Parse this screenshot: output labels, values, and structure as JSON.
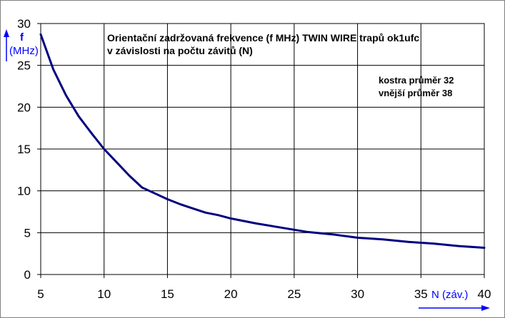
{
  "chart_data": {
    "type": "line",
    "title_lines": [
      "Orientační zadržovaná frekvence (f MHz) TWIN WIRE trapů ok1ufc",
      "v závislosti na počtu závitů (N)"
    ],
    "annotation_lines": [
      "kostra průměr 32",
      "vnější průměr 38"
    ],
    "ylabel_lines": [
      "f",
      "(MHz)"
    ],
    "xlabel": "N (záv.)",
    "xlim": [
      5,
      40
    ],
    "ylim": [
      0,
      30
    ],
    "xticks": [
      5,
      10,
      15,
      20,
      25,
      30,
      35,
      40
    ],
    "yticks": [
      0,
      5,
      10,
      15,
      20,
      25,
      30
    ],
    "grid": true,
    "line_color": "#000080",
    "axis_label_color": "#0000ff",
    "series": [
      {
        "x": [
          5,
          6,
          7,
          8,
          9,
          10,
          11,
          12,
          13,
          14,
          15,
          16,
          17,
          18,
          19,
          20,
          22,
          24,
          26,
          28,
          30,
          32,
          34,
          36,
          38,
          40
        ],
        "values": [
          28.7,
          24.5,
          21.4,
          18.9,
          16.9,
          15.0,
          13.4,
          11.8,
          10.4,
          9.7,
          9.0,
          8.4,
          7.9,
          7.4,
          7.1,
          6.7,
          6.1,
          5.6,
          5.1,
          4.8,
          4.4,
          4.2,
          3.9,
          3.7,
          3.4,
          3.2
        ]
      }
    ]
  }
}
